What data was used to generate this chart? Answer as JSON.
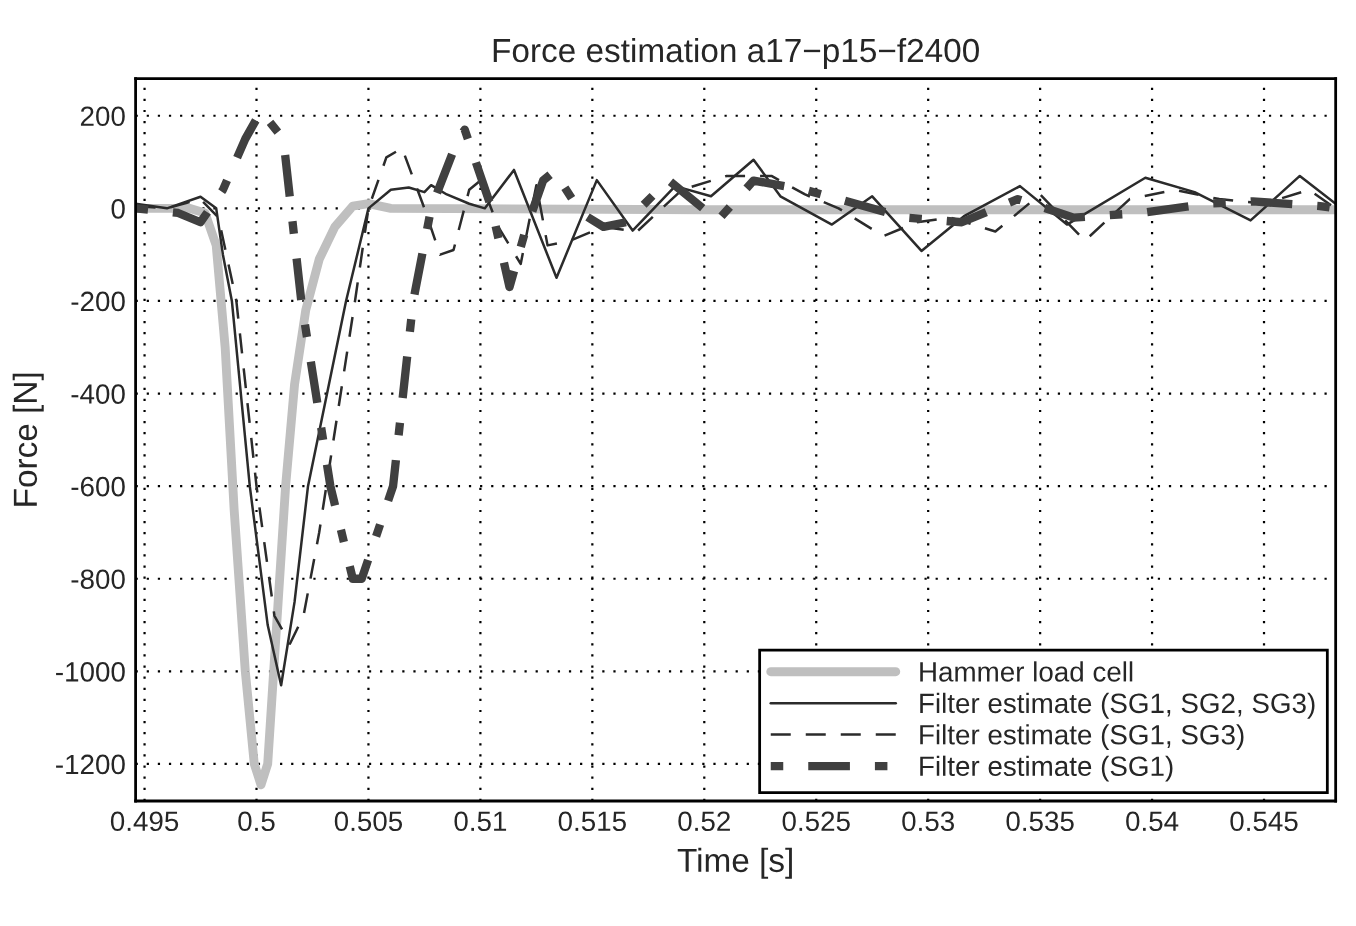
{
  "chart_data": {
    "type": "line",
    "title": "Force estimation a17−p15−f2400",
    "xlabel": "Time [s]",
    "ylabel": "Force [N]",
    "xlim": [
      0.4946,
      0.5482
    ],
    "ylim": [
      -1280,
      280
    ],
    "xticks": [
      0.495,
      0.5,
      0.505,
      0.51,
      0.515,
      0.52,
      0.525,
      0.53,
      0.535,
      0.54,
      0.545
    ],
    "yticks": [
      -1200,
      -1000,
      -800,
      -600,
      -400,
      -200,
      0,
      200
    ],
    "grid": true,
    "legend": "bottom right",
    "marker": "none",
    "series": [
      {
        "name": "Hammer load cell",
        "color": "#bfbfbf",
        "line_style": "solid",
        "x": [
          0.4946,
          0.497,
          0.4977,
          0.4982,
          0.4986,
          0.499,
          0.4995,
          0.4999,
          0.5002,
          0.5005,
          0.5009,
          0.5013,
          0.5017,
          0.5022,
          0.5028,
          0.5035,
          0.5043,
          0.505,
          0.506,
          0.52,
          0.5482
        ],
        "values": [
          0,
          0,
          -10,
          -80,
          -300,
          -650,
          -1000,
          -1200,
          -1245,
          -1200,
          -900,
          -600,
          -380,
          -220,
          -110,
          -40,
          5,
          10,
          0,
          -3,
          -3
        ]
      },
      {
        "name": "Filter estimate (SG1, SG2, SG3)",
        "color": "#2b2b2b",
        "line_style": "solid",
        "x": [
          0.4946,
          0.496,
          0.4975,
          0.4982,
          0.4985,
          0.4989,
          0.4997,
          0.5005,
          0.5011,
          0.5017,
          0.5023,
          0.504,
          0.505,
          0.506,
          0.5068,
          0.5075,
          0.5078,
          0.5085,
          0.5095,
          0.5102,
          0.5115,
          0.5134,
          0.5152,
          0.5168,
          0.5187,
          0.5203,
          0.5222,
          0.5234,
          0.5257,
          0.5275,
          0.5297,
          0.5316,
          0.5341,
          0.5362,
          0.5397,
          0.5419,
          0.5444,
          0.5466,
          0.5482
        ],
        "values": [
          10,
          0,
          25,
          0,
          -100,
          -200,
          -600,
          -900,
          -1030,
          -850,
          -600,
          -200,
          0,
          40,
          45,
          35,
          50,
          30,
          10,
          0,
          83,
          -150,
          61,
          -48,
          48,
          26,
          105,
          26,
          -35,
          26,
          -92,
          -17,
          48,
          -35,
          66,
          35,
          -26,
          70,
          10
        ]
      },
      {
        "name": "Filter estimate (SG1, SG3)",
        "color": "#2b2b2b",
        "line_style": "dashed",
        "x": [
          0.4946,
          0.496,
          0.4975,
          0.4983,
          0.4991,
          0.5,
          0.5008,
          0.5015,
          0.5021,
          0.5028,
          0.5044,
          0.505,
          0.5058,
          0.5065,
          0.5075,
          0.5082,
          0.5088,
          0.5095,
          0.51,
          0.5108,
          0.5118,
          0.5125,
          0.513,
          0.514,
          0.5155,
          0.517,
          0.519,
          0.521,
          0.523,
          0.5245,
          0.526,
          0.528,
          0.5295,
          0.531,
          0.533,
          0.535,
          0.537,
          0.539,
          0.541,
          0.543,
          0.545,
          0.547,
          0.5482
        ],
        "values": [
          5,
          0,
          20,
          -20,
          -200,
          -600,
          -880,
          -940,
          -880,
          -700,
          -200,
          0,
          110,
          130,
          0,
          -100,
          -90,
          40,
          60,
          -40,
          -120,
          50,
          -80,
          -70,
          -40,
          -50,
          40,
          70,
          70,
          30,
          0,
          -60,
          -30,
          -20,
          -50,
          30,
          -70,
          20,
          40,
          20,
          10,
          40,
          0
        ]
      },
      {
        "name": "Filter estimate (SG1)",
        "color": "#404040",
        "line_style": "dashdot",
        "x": [
          0.4946,
          0.4965,
          0.4975,
          0.4985,
          0.4995,
          0.5002,
          0.5012,
          0.502,
          0.5033,
          0.5043,
          0.5047,
          0.5061,
          0.507,
          0.5078,
          0.509,
          0.5093,
          0.5105,
          0.5113,
          0.512,
          0.5128,
          0.5133,
          0.5145,
          0.5155,
          0.5165,
          0.5184,
          0.5206,
          0.5222,
          0.5245,
          0.529,
          0.5315,
          0.534,
          0.5365,
          0.5395,
          0.5425,
          0.5445,
          0.5475,
          0.5482
        ],
        "values": [
          0,
          -10,
          -30,
          40,
          150,
          210,
          150,
          -200,
          -600,
          -800,
          -800,
          -600,
          -200,
          0,
          150,
          170,
          0,
          -170,
          -50,
          60,
          80,
          -10,
          -40,
          -30,
          61,
          -26,
          60,
          40,
          -20,
          -30,
          20,
          -20,
          -10,
          10,
          15,
          5,
          0
        ]
      }
    ]
  }
}
